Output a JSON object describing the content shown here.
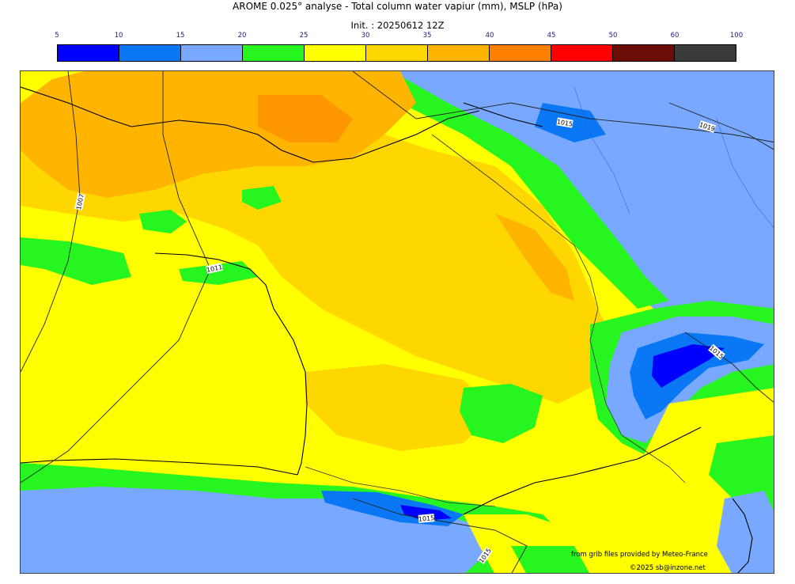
{
  "header": {
    "title": "AROME 0.025° analyse - Total column water vapiur (mm), MSLP (hPa)",
    "init": "Init. : 20250612 12Z"
  },
  "colorbar": {
    "ticks": [
      "5",
      "10",
      "15",
      "20",
      "25",
      "30",
      "35",
      "40",
      "45",
      "50",
      "60",
      "100"
    ],
    "colors": [
      "#0000ff",
      "#0a78f5",
      "#78a8ff",
      "#27f51f",
      "#ffff00",
      "#ffd700",
      "#ffb400",
      "#ff8000",
      "#ff0000",
      "#6b0d06",
      "#3a3a3a"
    ]
  },
  "map": {
    "isobar_labels": [
      "1007",
      "1011",
      "1015",
      "1019",
      "1015",
      "1015",
      "1015"
    ]
  },
  "credits": {
    "source": "from grib files provided by Meteo-France",
    "copyright": "©2025 sb@inzone.net"
  }
}
